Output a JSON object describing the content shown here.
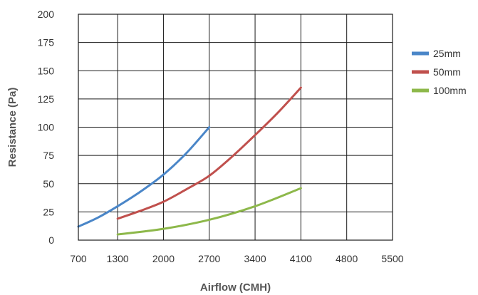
{
  "chart_data": {
    "type": "line",
    "title": "",
    "xlabel": "Airflow (CMH)",
    "ylabel": "Resistance (Pa)",
    "xlim": [
      700,
      5500
    ],
    "ylim": [
      0,
      200
    ],
    "x_ticks": [
      700,
      1300,
      2000,
      2700,
      3400,
      4100,
      4800,
      5500
    ],
    "y_ticks": [
      0,
      25,
      50,
      75,
      100,
      125,
      150,
      175,
      200
    ],
    "grid": true,
    "legend_position": "right",
    "series": [
      {
        "name": "25mm",
        "color": "#4a86c8",
        "points": [
          [
            700,
            12
          ],
          [
            1000,
            20
          ],
          [
            1300,
            30
          ],
          [
            1650,
            43
          ],
          [
            2000,
            58
          ],
          [
            2350,
            77
          ],
          [
            2700,
            100
          ]
        ]
      },
      {
        "name": "50mm",
        "color": "#c0504d",
        "points": [
          [
            1300,
            19
          ],
          [
            1650,
            26
          ],
          [
            2000,
            34
          ],
          [
            2350,
            45
          ],
          [
            2700,
            57
          ],
          [
            3050,
            74
          ],
          [
            3400,
            93
          ],
          [
            3750,
            113
          ],
          [
            4100,
            135
          ]
        ]
      },
      {
        "name": "100mm",
        "color": "#8db84a",
        "points": [
          [
            1300,
            5
          ],
          [
            2000,
            10
          ],
          [
            2700,
            18
          ],
          [
            3400,
            30
          ],
          [
            4100,
            46
          ]
        ]
      }
    ]
  }
}
